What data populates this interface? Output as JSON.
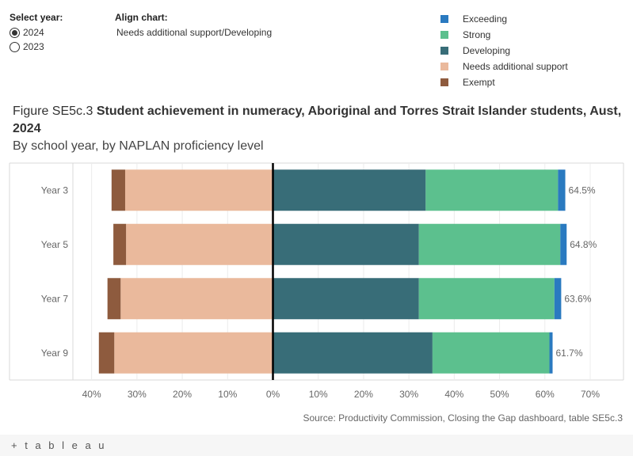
{
  "controls": {
    "year_label": "Select year:",
    "year_options": [
      "2024",
      "2023"
    ],
    "year_selected": "2024",
    "align_label": "Align chart:",
    "align_value": "Needs additional support/Developing"
  },
  "legend": [
    {
      "label": "Exceeding",
      "color": "#2a7ac0"
    },
    {
      "label": "Strong",
      "color": "#5cc08e"
    },
    {
      "label": "Developing",
      "color": "#386d78"
    },
    {
      "label": "Needs additional support",
      "color": "#eab99c"
    },
    {
      "label": "Exempt",
      "color": "#8e5b3e"
    }
  ],
  "title": {
    "prefix": "Figure SE5c.3",
    "main": "Student achievement in numeracy, Aboriginal and Torres Strait Islander students, Aust, 2024",
    "subtitle": "By school year, by NAPLAN proficiency level"
  },
  "chart_data": {
    "type": "bar",
    "orientation": "horizontal-diverging",
    "categories": [
      "Year 3",
      "Year 5",
      "Year 7",
      "Year 9"
    ],
    "series": [
      {
        "name": "Exempt",
        "side": "left",
        "values": [
          3.0,
          2.8,
          2.9,
          3.4
        ]
      },
      {
        "name": "Needs additional support",
        "side": "left",
        "values": [
          32.6,
          32.4,
          33.6,
          35.0
        ]
      },
      {
        "name": "Developing",
        "side": "right",
        "values": [
          33.7,
          32.2,
          32.2,
          35.2
        ]
      },
      {
        "name": "Strong",
        "side": "right",
        "values": [
          29.2,
          31.2,
          29.9,
          25.8
        ]
      },
      {
        "name": "Exceeding",
        "side": "right",
        "values": [
          1.6,
          1.4,
          1.5,
          0.7
        ]
      }
    ],
    "data_labels": [
      "64.5%",
      "64.8%",
      "63.6%",
      "61.7%"
    ],
    "xticks": [
      "40%",
      "30%",
      "20%",
      "10%",
      "0%",
      "10%",
      "20%",
      "30%",
      "40%",
      "50%",
      "60%",
      "70%"
    ],
    "xlim": [
      -40,
      70
    ]
  },
  "source": "Source: Productivity Commission, Closing the Gap dashboard, table SE5c.3",
  "footer": {
    "logo": "+ t a b l e a u"
  }
}
